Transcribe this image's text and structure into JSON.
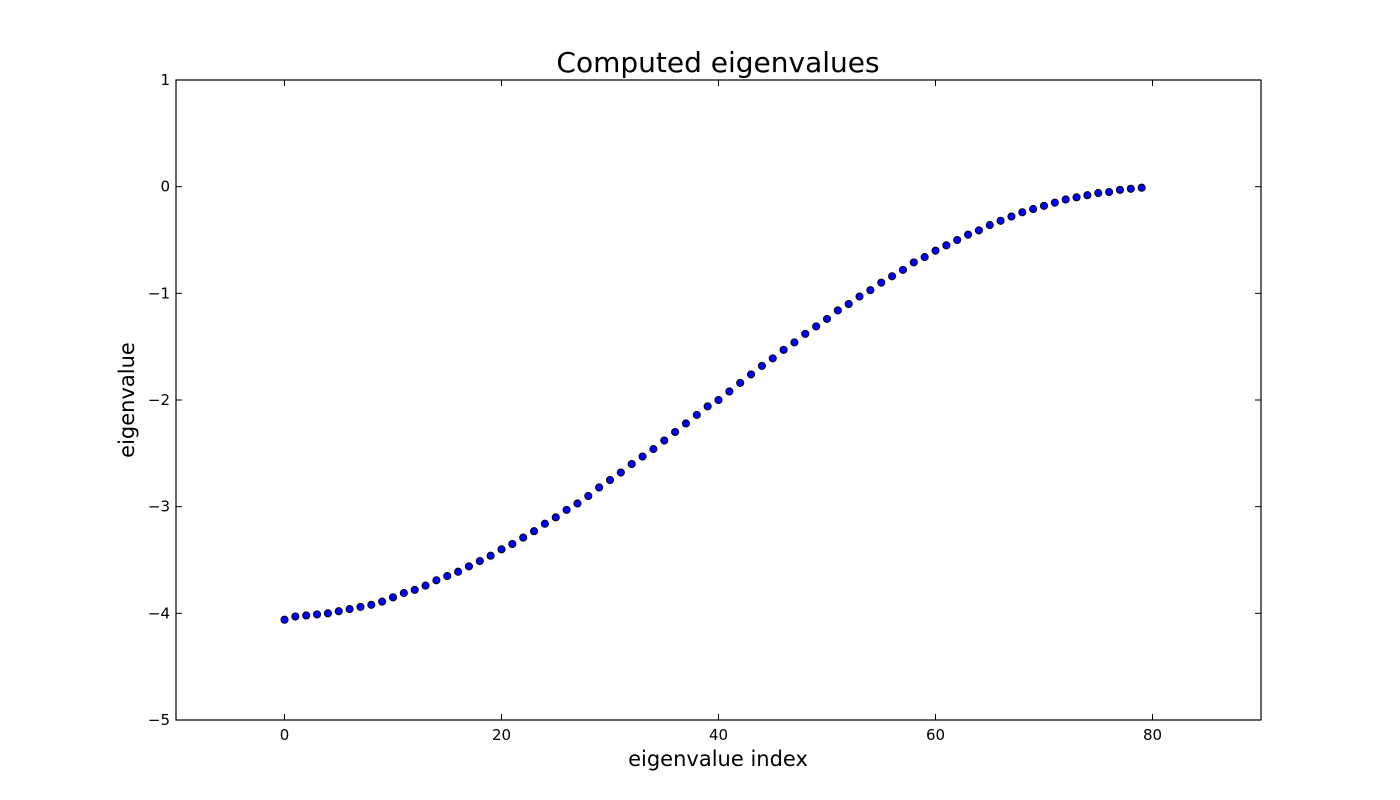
{
  "chart_data": {
    "type": "scatter",
    "title": "Computed eigenvalues",
    "xlabel": "eigenvalue index",
    "ylabel": "eigenvalue",
    "xlim": [
      -10,
      90
    ],
    "ylim": [
      -5,
      1
    ],
    "xticks": [
      0,
      20,
      40,
      60,
      80
    ],
    "yticks": [
      1,
      0,
      -1,
      -2,
      -3,
      -4,
      -5
    ],
    "xtick_labels": [
      "0",
      "20",
      "40",
      "60",
      "80"
    ],
    "ytick_labels": [
      "1",
      "0",
      "−1",
      "−2",
      "−3",
      "−4",
      "−5"
    ],
    "grid": false,
    "legend": "none",
    "colors": {
      "marker_fill": "#0000ff",
      "marker_edge": "#000000",
      "axes": "#000000",
      "background": "#ffffff"
    },
    "series": [
      {
        "x": [
          0,
          1,
          2,
          3,
          4,
          5,
          6,
          7,
          8,
          9,
          10,
          11,
          12,
          13,
          14,
          15,
          16,
          17,
          18,
          19,
          20,
          21,
          22,
          23,
          24,
          25,
          26,
          27,
          28,
          29,
          30,
          31,
          32,
          33,
          34,
          35,
          36,
          37,
          38,
          39,
          40,
          41,
          42,
          43,
          44,
          45,
          46,
          47,
          48,
          49,
          50,
          51,
          52,
          53,
          54,
          55,
          56,
          57,
          58,
          59,
          60,
          61,
          62,
          63,
          64,
          65,
          66,
          67,
          68,
          69,
          70,
          71,
          72,
          73,
          74,
          75,
          76,
          77,
          78,
          79
        ],
        "y": [
          -4.06,
          -4.03,
          -4.02,
          -4.01,
          -4.0,
          -3.98,
          -3.96,
          -3.94,
          -3.92,
          -3.89,
          -3.85,
          -3.81,
          -3.78,
          -3.74,
          -3.69,
          -3.65,
          -3.61,
          -3.56,
          -3.51,
          -3.46,
          -3.4,
          -3.35,
          -3.29,
          -3.23,
          -3.16,
          -3.1,
          -3.03,
          -2.97,
          -2.9,
          -2.82,
          -2.75,
          -2.68,
          -2.6,
          -2.53,
          -2.46,
          -2.38,
          -2.3,
          -2.22,
          -2.14,
          -2.06,
          -2.0,
          -1.92,
          -1.84,
          -1.76,
          -1.68,
          -1.61,
          -1.53,
          -1.46,
          -1.38,
          -1.31,
          -1.24,
          -1.16,
          -1.1,
          -1.03,
          -0.97,
          -0.9,
          -0.84,
          -0.78,
          -0.71,
          -0.66,
          -0.6,
          -0.55,
          -0.5,
          -0.45,
          -0.41,
          -0.36,
          -0.32,
          -0.28,
          -0.24,
          -0.21,
          -0.18,
          -0.15,
          -0.12,
          -0.1,
          -0.08,
          -0.06,
          -0.05,
          -0.03,
          -0.02,
          -0.01
        ]
      }
    ]
  }
}
